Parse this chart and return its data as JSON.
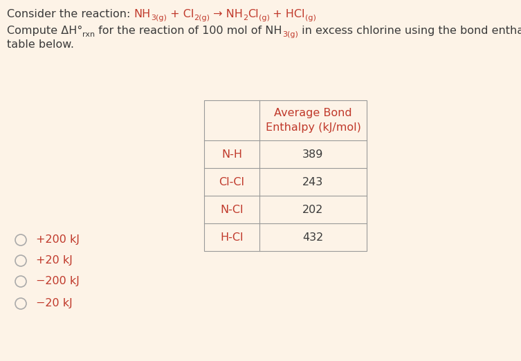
{
  "bg": "#fdf3e7",
  "tc": "#c0392b",
  "pc": "#3a3a3a",
  "bc": "#999999",
  "fs": 11.5,
  "fs_sub": 8.0,
  "table_rows": [
    [
      "N-H",
      "389"
    ],
    [
      "Cl-Cl",
      "243"
    ],
    [
      "N-Cl",
      "202"
    ],
    [
      "H-Cl",
      "432"
    ]
  ],
  "options": [
    "+200 kJ",
    "+20 kJ",
    "−200 kJ",
    "−20 kJ"
  ]
}
